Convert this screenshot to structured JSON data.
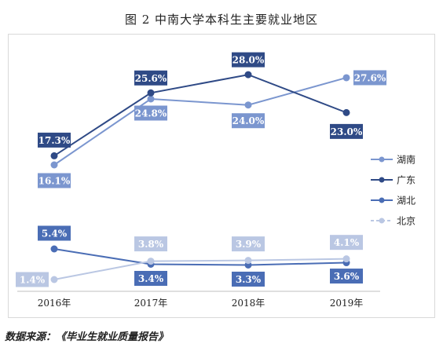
{
  "title": "图 2 中南大学本科生主要就业地区",
  "source": "数据来源：《毕业生就业质量报告》",
  "chart_data": {
    "type": "line",
    "categories": [
      "2016年",
      "2017年",
      "2018年",
      "2019年"
    ],
    "series": [
      {
        "name": "湖南",
        "color": "#7b96cf",
        "values": [
          16.1,
          24.8,
          24.0,
          27.6
        ],
        "labels": [
          "16.1%",
          "24.8%",
          "24.0%",
          "27.6%"
        ]
      },
      {
        "name": "广东",
        "color": "#2f4a86",
        "values": [
          17.3,
          25.6,
          28.0,
          23.0
        ],
        "labels": [
          "17.3%",
          "25.6%",
          "28.0%",
          "23.0%"
        ]
      },
      {
        "name": "湖北",
        "color": "#4a6db5",
        "values": [
          5.4,
          3.4,
          3.3,
          3.6
        ],
        "labels": [
          "5.4%",
          "3.4%",
          "3.3%",
          "3.6%"
        ]
      },
      {
        "name": "北京",
        "color": "#bac7e3",
        "values": [
          1.4,
          3.8,
          3.9,
          4.1
        ],
        "labels": [
          "1.4%",
          "3.8%",
          "3.9%",
          "4.1%"
        ]
      }
    ],
    "legend_position": "right",
    "grid": false
  }
}
